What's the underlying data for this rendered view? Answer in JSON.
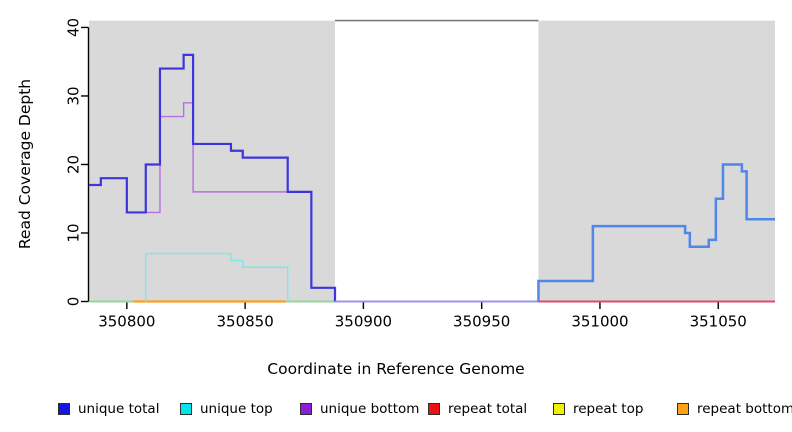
{
  "chart_data": {
    "type": "line",
    "subtype": "step-coverage-plot",
    "title": "",
    "xlabel": "Coordinate in Reference Genome",
    "ylabel": "Read Coverage Depth",
    "xlim": [
      350784,
      351074
    ],
    "ylim": [
      0,
      41
    ],
    "x_tick_values": [
      350800,
      350850,
      350900,
      350950,
      351000,
      351050
    ],
    "y_tick_values": [
      0,
      10,
      20,
      30,
      40
    ],
    "grid": false,
    "legend_position": "bottom",
    "background_regions": [
      {
        "name": "covered-region-left",
        "x0": 350784,
        "x1": 350888,
        "fill": "#d9d9d9"
      },
      {
        "name": "gap-region",
        "x0": 350888,
        "x1": 350974,
        "fill": "#ffffff",
        "top_border": "#7a7a7a"
      },
      {
        "name": "covered-region-right",
        "x0": 350974,
        "x1": 351074,
        "fill": "#d9d9d9"
      }
    ],
    "plot_lines": [
      {
        "name": "zero-line-overlap-left",
        "series": "unique top + repeat lines at 0",
        "color": "#97d4a0",
        "width": 2.0,
        "x": [
          350784,
          350803
        ],
        "y": [
          0,
          0
        ]
      },
      {
        "name": "zero-line-repeat-bottom",
        "series": "repeat bottom",
        "color": "#ff9d1f",
        "width": 2.2,
        "x": [
          350803,
          350867
        ],
        "y": [
          0,
          0
        ]
      },
      {
        "name": "zero-line-overlap-mid",
        "series": "unique top + repeat lines at 0",
        "color": "#97d4a0",
        "width": 2.0,
        "x": [
          350867,
          350888
        ],
        "y": [
          0,
          0
        ]
      },
      {
        "name": "zero-line-repeat-total",
        "series": "repeat total",
        "color": "#e0496b",
        "width": 2.0,
        "x": [
          350974,
          351074
        ],
        "y": [
          0,
          0
        ]
      },
      {
        "name": "unique-bottom-line",
        "series": "unique bottom",
        "color": "#b46fe2",
        "width": 1.4,
        "x": [
          350800,
          350814,
          350824,
          350828,
          350878,
          350888
        ],
        "y": [
          13,
          27,
          29,
          16,
          2,
          0
        ]
      },
      {
        "name": "unique-top-line",
        "series": "unique top",
        "color": "#7ce8e8",
        "width": 1.4,
        "x": [
          350808,
          350808,
          350844,
          350849,
          350868
        ],
        "y": [
          0,
          7,
          6,
          5,
          0
        ]
      },
      {
        "name": "unique-total-line-left",
        "series": "unique total",
        "color": "#3d36dd",
        "width": 2.2,
        "x": [
          350784,
          350789,
          350800,
          350808,
          350814,
          350824,
          350828,
          350844,
          350849,
          350868,
          350878,
          350888
        ],
        "y": [
          17,
          18,
          13,
          20,
          34,
          36,
          23,
          22,
          21,
          16,
          2,
          0
        ]
      },
      {
        "name": "unique-total-line-gap",
        "series": "unique total over unique bottom at 0",
        "color": "#9b93ea",
        "width": 2.0,
        "x": [
          350888,
          350974
        ],
        "y": [
          0,
          0
        ]
      },
      {
        "name": "unique-total-line-right",
        "series": "unique total",
        "color": "#4f86ea",
        "width": 2.5,
        "x": [
          350974,
          350974,
          350997,
          351036,
          351038,
          351046,
          351049,
          351052,
          351060,
          351062,
          351074
        ],
        "y": [
          0,
          3,
          11,
          10,
          8,
          9,
          15,
          20,
          19,
          12,
          12
        ]
      }
    ],
    "legend": {
      "entries": [
        {
          "label": "unique total",
          "color": "#1414e6"
        },
        {
          "label": "unique top",
          "color": "#00e5ee"
        },
        {
          "label": "unique bottom",
          "color": "#8b1fd6"
        },
        {
          "label": "repeat total",
          "color": "#ee1111"
        },
        {
          "label": "repeat top",
          "color": "#f2f200"
        },
        {
          "label": "repeat bottom",
          "color": "#ffa018"
        }
      ]
    }
  },
  "colors": {
    "background": "#ffffff",
    "region_fill": "#d9d9d9",
    "gap_top_border": "#7a7a7a",
    "axis": "#000000"
  }
}
